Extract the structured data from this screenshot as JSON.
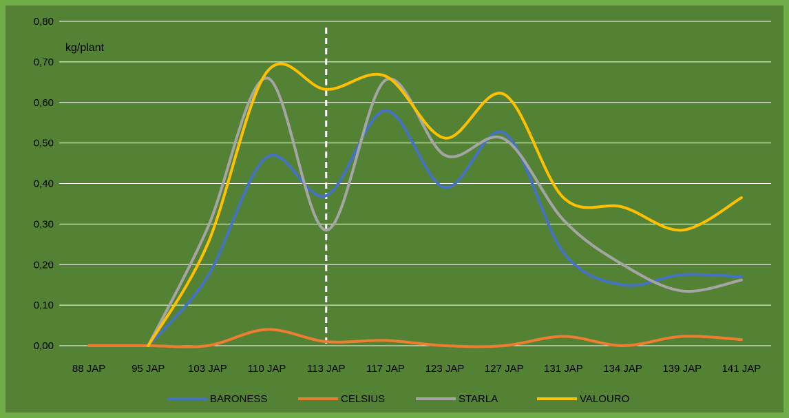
{
  "chart_data": {
    "type": "line",
    "unit_label": "kg/plant",
    "categories": [
      "88  JAP",
      "95 JAP",
      "103 JAP",
      "110 JAP",
      "113 JAP",
      "117 JAP",
      "123 JAP",
      "127  JAP",
      "131 JAP",
      "134 JAP",
      "139 JAP",
      "141 JAP"
    ],
    "y_ticks": [
      "0,00",
      "0,10",
      "0,20",
      "0,30",
      "0,40",
      "0,50",
      "0,60",
      "0,70",
      "0,80"
    ],
    "ylim": [
      0,
      0.8
    ],
    "grid": true,
    "legend_position": "bottom",
    "marker_line_after_category": "113 JAP",
    "series": [
      {
        "name": "BARONESS",
        "color": "#4472c4",
        "values": [
          null,
          0.0,
          0.17,
          0.465,
          0.37,
          0.58,
          0.39,
          0.525,
          0.23,
          0.15,
          0.175,
          0.17
        ]
      },
      {
        "name": "CELSIUS",
        "color": "#ed7d31",
        "values": [
          0.0,
          0.0,
          0.0,
          0.04,
          0.01,
          0.013,
          0.0,
          0.0,
          0.023,
          0.0,
          0.023,
          0.015
        ]
      },
      {
        "name": "STARLA",
        "color": "#a5a5a5",
        "values": [
          null,
          0.0,
          0.29,
          0.66,
          0.285,
          0.655,
          0.47,
          0.51,
          0.31,
          0.2,
          0.135,
          0.162
        ]
      },
      {
        "name": "VALOURO",
        "color": "#ffc000",
        "values": [
          null,
          0.0,
          0.25,
          0.675,
          0.632,
          0.665,
          0.512,
          0.62,
          0.365,
          0.342,
          0.285,
          0.365
        ]
      }
    ]
  }
}
